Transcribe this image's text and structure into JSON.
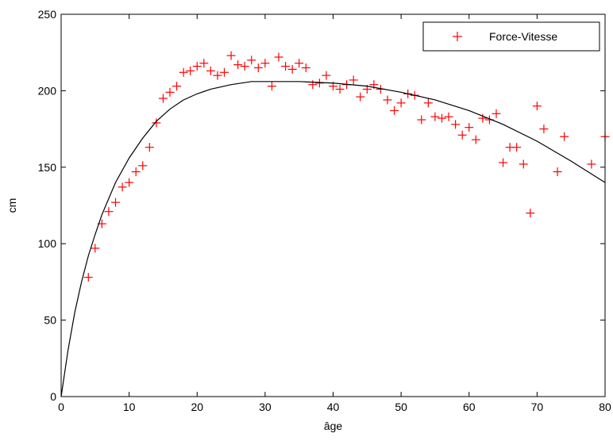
{
  "chart_data": {
    "type": "scatter",
    "title": "",
    "xlabel": "âge",
    "ylabel": "cm",
    "xlim": [
      0,
      80
    ],
    "ylim": [
      0,
      250
    ],
    "xticks": [
      0,
      10,
      20,
      30,
      40,
      50,
      60,
      70,
      80
    ],
    "yticks": [
      0,
      50,
      100,
      150,
      200,
      250
    ],
    "grid": false,
    "legend_position": "top-right",
    "series": [
      {
        "name": "Force-Vitesse",
        "kind": "scatter",
        "marker": "plus",
        "color": "#ff0000",
        "points": [
          [
            4,
            78
          ],
          [
            5,
            97
          ],
          [
            6,
            113
          ],
          [
            7,
            121
          ],
          [
            8,
            127
          ],
          [
            9,
            137
          ],
          [
            10,
            140
          ],
          [
            11,
            147
          ],
          [
            12,
            151
          ],
          [
            13,
            163
          ],
          [
            14,
            179
          ],
          [
            15,
            195
          ],
          [
            16,
            199
          ],
          [
            17,
            203
          ],
          [
            18,
            212
          ],
          [
            19,
            213
          ],
          [
            20,
            216
          ],
          [
            21,
            218
          ],
          [
            22,
            213
          ],
          [
            23,
            210
          ],
          [
            24,
            212
          ],
          [
            25,
            223
          ],
          [
            26,
            217
          ],
          [
            27,
            216
          ],
          [
            28,
            220
          ],
          [
            29,
            215
          ],
          [
            30,
            218
          ],
          [
            31,
            203
          ],
          [
            32,
            222
          ],
          [
            33,
            216
          ],
          [
            34,
            214
          ],
          [
            35,
            218
          ],
          [
            36,
            215
          ],
          [
            37,
            204
          ],
          [
            38,
            205
          ],
          [
            39,
            210
          ],
          [
            40,
            203
          ],
          [
            41,
            201
          ],
          [
            42,
            204
          ],
          [
            43,
            207
          ],
          [
            44,
            196
          ],
          [
            45,
            201
          ],
          [
            46,
            204
          ],
          [
            47,
            201
          ],
          [
            48,
            194
          ],
          [
            49,
            187
          ],
          [
            50,
            192
          ],
          [
            51,
            198
          ],
          [
            52,
            197
          ],
          [
            53,
            181
          ],
          [
            54,
            192
          ],
          [
            55,
            183
          ],
          [
            56,
            182
          ],
          [
            57,
            183
          ],
          [
            58,
            178
          ],
          [
            59,
            171
          ],
          [
            60,
            176
          ],
          [
            61,
            168
          ],
          [
            62,
            182
          ],
          [
            63,
            181
          ],
          [
            64,
            185
          ],
          [
            65,
            153
          ],
          [
            66,
            163
          ],
          [
            67,
            163
          ],
          [
            68,
            152
          ],
          [
            69,
            120
          ],
          [
            70,
            190
          ],
          [
            71,
            175
          ],
          [
            73,
            147
          ],
          [
            74,
            170
          ],
          [
            78,
            152
          ],
          [
            80,
            170
          ]
        ]
      },
      {
        "name": "",
        "kind": "line",
        "color": "#000000",
        "points": [
          [
            0,
            0
          ],
          [
            1,
            30
          ],
          [
            2,
            55
          ],
          [
            3,
            75
          ],
          [
            4,
            92
          ],
          [
            5,
            106
          ],
          [
            6,
            119
          ],
          [
            8,
            140
          ],
          [
            10,
            156
          ],
          [
            12,
            169
          ],
          [
            14,
            180
          ],
          [
            16,
            188
          ],
          [
            18,
            194
          ],
          [
            20,
            198
          ],
          [
            22,
            201
          ],
          [
            25,
            204
          ],
          [
            28,
            206
          ],
          [
            30,
            206
          ],
          [
            35,
            206
          ],
          [
            40,
            205
          ],
          [
            45,
            203
          ],
          [
            50,
            199
          ],
          [
            55,
            194
          ],
          [
            60,
            187
          ],
          [
            65,
            178
          ],
          [
            70,
            167
          ],
          [
            75,
            154
          ],
          [
            80,
            140
          ]
        ]
      }
    ]
  }
}
